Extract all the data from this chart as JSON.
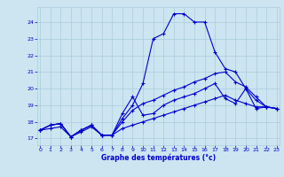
{
  "xlabel": "Graphe des températures (°c)",
  "bg_color": "#cce5f0",
  "grid_color": "#aaccdd",
  "line_color": "#0000cc",
  "x_ticks": [
    0,
    1,
    2,
    3,
    4,
    5,
    6,
    7,
    8,
    9,
    10,
    11,
    12,
    13,
    14,
    15,
    16,
    17,
    18,
    19,
    20,
    21,
    22,
    23
  ],
  "y_ticks": [
    17,
    18,
    19,
    20,
    21,
    22,
    23,
    24
  ],
  "xlim": [
    -0.3,
    23.3
  ],
  "ylim": [
    16.6,
    24.9
  ],
  "line1_y": [
    17.5,
    17.8,
    17.9,
    17.1,
    17.5,
    17.8,
    17.2,
    17.2,
    18.5,
    19.5,
    18.4,
    18.5,
    19.0,
    19.3,
    19.5,
    19.7,
    20.0,
    20.3,
    19.4,
    19.1,
    20.0,
    18.8,
    18.9,
    18.8
  ],
  "line2_y": [
    17.5,
    17.8,
    17.9,
    17.1,
    17.5,
    17.8,
    17.2,
    17.2,
    18.2,
    19.0,
    20.3,
    23.0,
    23.3,
    24.5,
    24.5,
    24.0,
    24.0,
    22.2,
    21.2,
    21.0,
    20.0,
    19.3,
    18.9,
    18.8
  ],
  "line3_y": [
    17.5,
    17.8,
    17.9,
    17.1,
    17.5,
    17.8,
    17.2,
    17.2,
    18.0,
    18.7,
    19.1,
    19.3,
    19.6,
    19.9,
    20.1,
    20.4,
    20.6,
    20.9,
    21.0,
    20.4,
    20.1,
    19.5,
    18.9,
    18.8
  ],
  "line4_y": [
    17.5,
    17.6,
    17.7,
    17.1,
    17.4,
    17.7,
    17.2,
    17.2,
    17.6,
    17.8,
    18.0,
    18.2,
    18.4,
    18.6,
    18.8,
    19.0,
    19.2,
    19.4,
    19.6,
    19.3,
    19.1,
    18.9,
    18.9,
    18.8
  ]
}
